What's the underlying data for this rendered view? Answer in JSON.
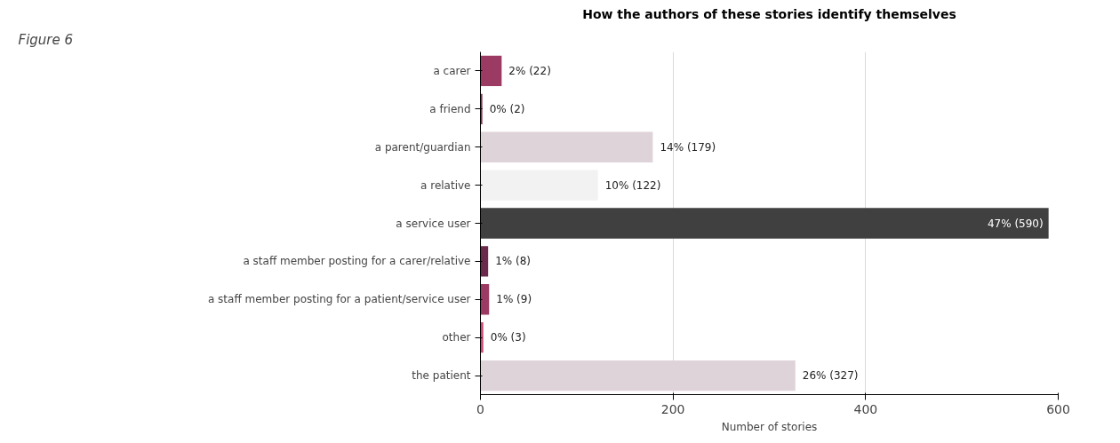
{
  "chart_data": {
    "type": "bar",
    "orientation": "horizontal",
    "title": "How the authors of these stories identify themselves",
    "xlabel": "Number of stories",
    "categories": [
      "a carer",
      "a friend",
      "a parent/guardian",
      "a relative",
      "a service user",
      "a staff member posting for a carer/relative",
      "a staff member posting for a patient/service user",
      "other",
      "the patient"
    ],
    "values": [
      22,
      2,
      179,
      122,
      590,
      8,
      9,
      3,
      327
    ],
    "colors": [
      "#9b3a62",
      "#8c2d52",
      "#dfd3da",
      "#f2f2f2",
      "#404040",
      "#6b2a4c",
      "#9b3a62",
      "#d04a7a",
      "#dfd3da"
    ],
    "value_labels": [
      "2% (22)",
      "0% (2)",
      "14% (179)",
      "10% (122)",
      "47% (590)",
      "1% (8)",
      "1% (9)",
      "0% (3)",
      "26% (327)"
    ],
    "xlim": [
      0,
      600
    ],
    "xticks": [
      0,
      200,
      400,
      600
    ],
    "grid": "x",
    "annotations": [
      "Figure 6"
    ]
  }
}
